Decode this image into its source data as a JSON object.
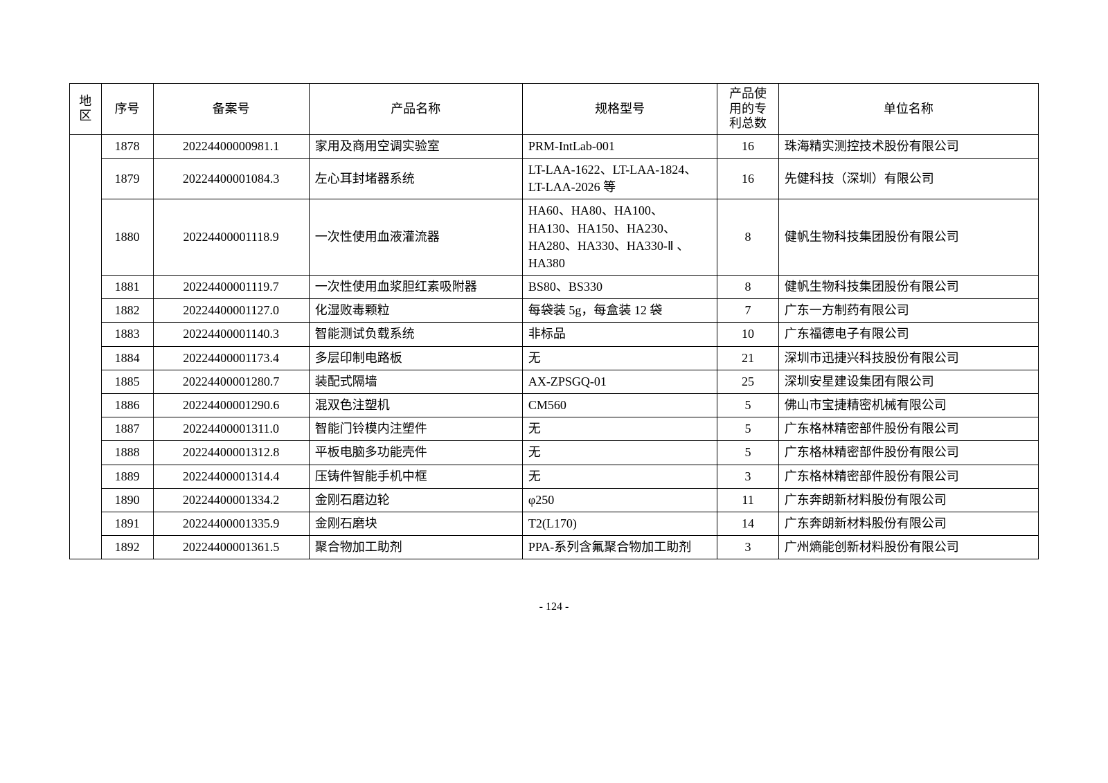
{
  "table": {
    "headers": {
      "region": "地区",
      "seq": "序号",
      "filing": "备案号",
      "product": "产品名称",
      "spec": "规格型号",
      "patent": "产品使用的专利总数",
      "company": "单位名称"
    },
    "rows": [
      {
        "seq": "1878",
        "filing": "20224400000981.1",
        "product": "家用及商用空调实验室",
        "spec": "PRM-IntLab-001",
        "patent": "16",
        "company": "珠海精实测控技术股份有限公司"
      },
      {
        "seq": "1879",
        "filing": "20224400001084.3",
        "product": "左心耳封堵器系统",
        "spec": "LT-LAA-1622、LT-LAA-1824、LT-LAA-2026 等",
        "patent": "16",
        "company": "先健科技（深圳）有限公司"
      },
      {
        "seq": "1880",
        "filing": "20224400001118.9",
        "product": "一次性使用血液灌流器",
        "spec": "HA60、HA80、HA100、HA130、HA150、HA230、HA280、HA330、HA330-Ⅱ 、HA380",
        "patent": "8",
        "company": "健帆生物科技集团股份有限公司"
      },
      {
        "seq": "1881",
        "filing": "20224400001119.7",
        "product": "一次性使用血浆胆红素吸附器",
        "spec": "BS80、BS330",
        "patent": "8",
        "company": "健帆生物科技集团股份有限公司"
      },
      {
        "seq": "1882",
        "filing": "20224400001127.0",
        "product": "化湿败毒颗粒",
        "spec": "每袋装 5g，每盒装 12 袋",
        "patent": "7",
        "company": "广东一方制药有限公司"
      },
      {
        "seq": "1883",
        "filing": "20224400001140.3",
        "product": "智能测试负载系统",
        "spec": "非标品",
        "patent": "10",
        "company": "广东福德电子有限公司"
      },
      {
        "seq": "1884",
        "filing": "20224400001173.4",
        "product": "多层印制电路板",
        "spec": "无",
        "patent": "21",
        "company": "深圳市迅捷兴科技股份有限公司"
      },
      {
        "seq": "1885",
        "filing": "20224400001280.7",
        "product": "装配式隔墙",
        "spec": "AX-ZPSGQ-01",
        "patent": "25",
        "company": "深圳安星建设集团有限公司"
      },
      {
        "seq": "1886",
        "filing": "20224400001290.6",
        "product": "混双色注塑机",
        "spec": "CM560",
        "patent": "5",
        "company": "佛山市宝捷精密机械有限公司"
      },
      {
        "seq": "1887",
        "filing": "20224400001311.0",
        "product": "智能门铃模内注塑件",
        "spec": "无",
        "patent": "5",
        "company": "广东格林精密部件股份有限公司"
      },
      {
        "seq": "1888",
        "filing": "20224400001312.8",
        "product": "平板电脑多功能壳件",
        "spec": "无",
        "patent": "5",
        "company": "广东格林精密部件股份有限公司"
      },
      {
        "seq": "1889",
        "filing": "20224400001314.4",
        "product": "压铸件智能手机中框",
        "spec": "无",
        "patent": "3",
        "company": "广东格林精密部件股份有限公司"
      },
      {
        "seq": "1890",
        "filing": "20224400001334.2",
        "product": "金刚石磨边轮",
        "spec": "φ250",
        "patent": "11",
        "company": "广东奔朗新材料股份有限公司"
      },
      {
        "seq": "1891",
        "filing": "20224400001335.9",
        "product": "金刚石磨块",
        "spec": "T2(L170)",
        "patent": "14",
        "company": "广东奔朗新材料股份有限公司"
      },
      {
        "seq": "1892",
        "filing": "20224400001361.5",
        "product": "聚合物加工助剂",
        "spec": "PPA-系列含氟聚合物加工助剂",
        "patent": "3",
        "company": "广州熵能创新材料股份有限公司"
      }
    ]
  },
  "pageNumber": "- 124 -"
}
